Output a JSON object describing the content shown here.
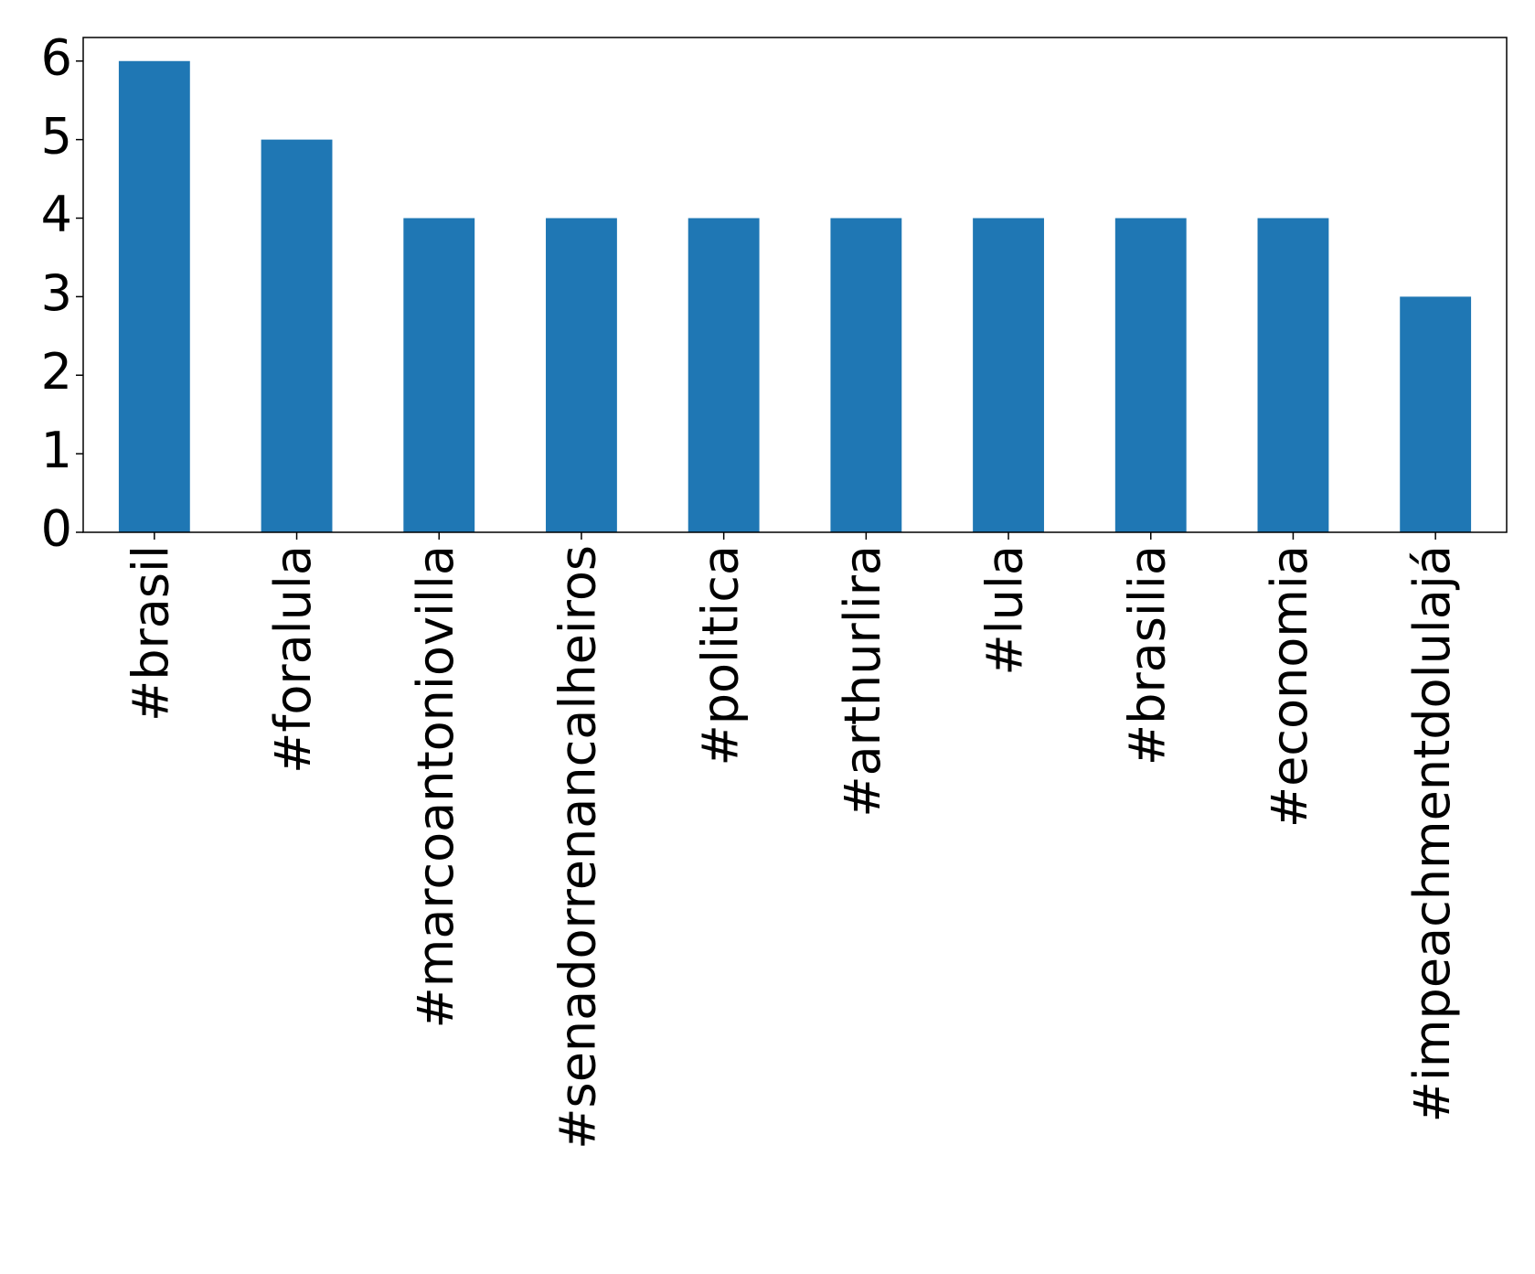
{
  "chart_data": {
    "type": "bar",
    "categories": [
      "#brasil",
      "#foralula",
      "#marcoantoniovilla",
      "#senadorrenancalheiros",
      "#politica",
      "#arthurlira",
      "#lula",
      "#brasilia",
      "#economia",
      "#impeachmentdolulajá"
    ],
    "values": [
      6,
      5,
      4,
      4,
      4,
      4,
      4,
      4,
      4,
      3
    ],
    "color": "#1f77b4",
    "ylim": [
      0,
      6.3
    ],
    "yticks": [
      0,
      1,
      2,
      3,
      4,
      5,
      6
    ],
    "grid": false
  }
}
